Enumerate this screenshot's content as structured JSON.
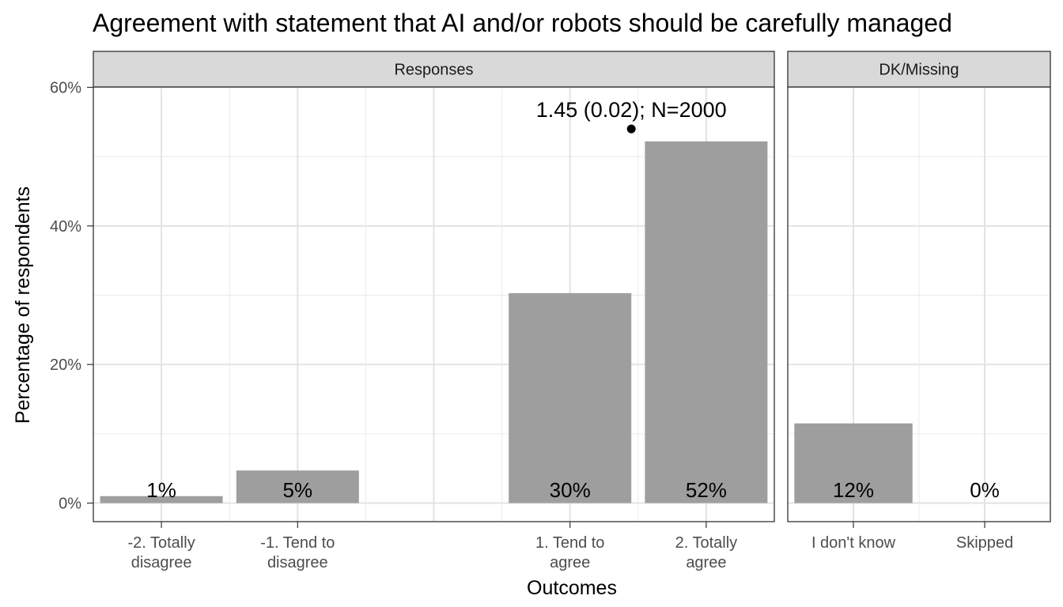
{
  "chart_data": {
    "type": "bar",
    "title": "Agreement with statement that AI and/or robots should be carefully managed",
    "xlabel": "Outcomes",
    "ylabel": "Percentage of respondents",
    "ylim": [
      0,
      0.6
    ],
    "y_ticks": [
      "0%",
      "20%",
      "40%",
      "60%"
    ],
    "y_tick_values": [
      0,
      0.2,
      0.4,
      0.6
    ],
    "grid": true,
    "bar_color": "#9e9e9e",
    "facets": [
      {
        "name": "Responses",
        "x_range": [
          -2.5,
          2.5
        ],
        "categories": [
          {
            "label_lines": [
              "-2. Totally",
              "disagree"
            ],
            "x": -2,
            "value": 0.01,
            "label": "1%"
          },
          {
            "label_lines": [
              "-1. Tend to",
              "disagree"
            ],
            "x": -1,
            "value": 0.047,
            "label": "5%"
          },
          {
            "label_lines": [
              "1. Tend to",
              "agree"
            ],
            "x": 1,
            "value": 0.303,
            "label": "30%"
          },
          {
            "label_lines": [
              "2. Totally",
              "agree"
            ],
            "x": 2,
            "value": 0.522,
            "label": "52%"
          }
        ],
        "annotation": {
          "text": "1.45 (0.02); N=2000",
          "mean": 1.45,
          "marker_value": 0.54
        }
      },
      {
        "name": "DK/Missing",
        "x_range": [
          0.5,
          2.5
        ],
        "categories": [
          {
            "label_lines": [
              "I don't know"
            ],
            "x": 1,
            "value": 0.115,
            "label": "12%"
          },
          {
            "label_lines": [
              "Skipped"
            ],
            "x": 2,
            "value": 0.0,
            "label": "0%"
          }
        ]
      }
    ]
  }
}
